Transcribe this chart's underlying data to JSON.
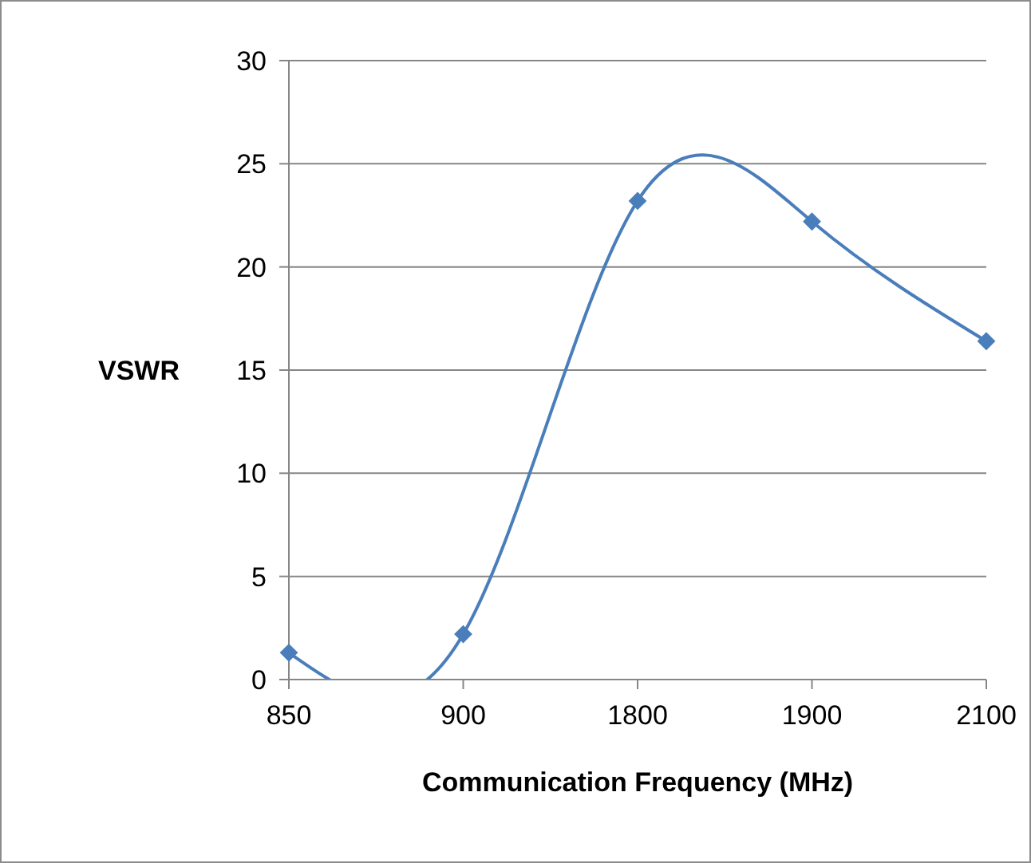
{
  "chart_data": {
    "type": "line",
    "xlabel": "Communication Frequency (MHz)",
    "ylabel": "VSWR",
    "categories": [
      "850",
      "900",
      "1800",
      "1900",
      "2100"
    ],
    "series": [
      {
        "color": "#4a7ebb",
        "values": [
          1.3,
          2.2,
          23.2,
          22.2,
          16.4
        ]
      }
    ],
    "ylim": [
      0,
      30
    ],
    "yticks": [
      0,
      5,
      10,
      15,
      20,
      25,
      30
    ],
    "grid": "y",
    "marker": "diamond",
    "line_style": "solid",
    "legend": false
  }
}
